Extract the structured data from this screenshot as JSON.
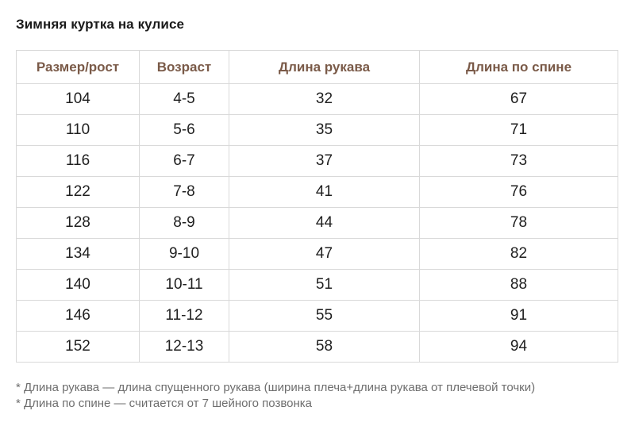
{
  "title": "Зимняя куртка на кулисе",
  "table": {
    "headers": [
      "Размер/рост",
      "Возраст",
      "Длина рукава",
      "Длина по спине"
    ],
    "rows": [
      [
        "104",
        "4-5",
        "32",
        "67"
      ],
      [
        "110",
        "5-6",
        "35",
        "71"
      ],
      [
        "116",
        "6-7",
        "37",
        "73"
      ],
      [
        "122",
        "7-8",
        "41",
        "76"
      ],
      [
        "128",
        "8-9",
        "44",
        "78"
      ],
      [
        "134",
        "9-10",
        "47",
        "82"
      ],
      [
        "140",
        "10-11",
        "51",
        "88"
      ],
      [
        "146",
        "11-12",
        "55",
        "91"
      ],
      [
        "152",
        "12-13",
        "58",
        "94"
      ]
    ]
  },
  "notes": [
    "* Длина рукава — длина спущенного рукава (ширина плеча+длина рукава от плечевой точки)",
    "* Длина по спине — считается от 7 шейного позвонка"
  ],
  "colors": {
    "header_text": "#7a5a48",
    "border": "#d9d9d9",
    "note_text": "#6e6e6e"
  }
}
